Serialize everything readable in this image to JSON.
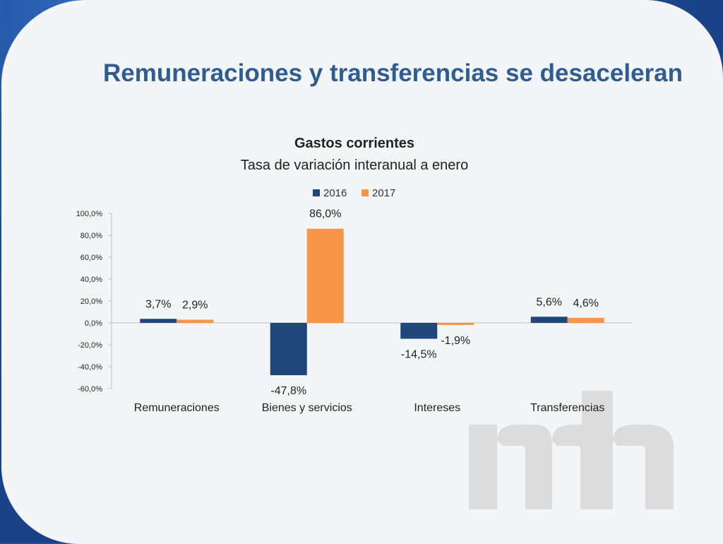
{
  "slide": {
    "title": "Remuneraciones y transferencias se desaceleran"
  },
  "colors": {
    "series_2016": "#1f477b",
    "series_2017": "#f79646",
    "title": "#2f5d8f",
    "watermark": "#dcdcdc"
  },
  "watermark_icon": "mh-logo-watermark",
  "chart_data": {
    "type": "bar",
    "title": "Gastos corrientes",
    "subtitle": "Tasa de variación interanual a enero",
    "categories": [
      "Remuneraciones",
      "Bienes y servicios",
      "Intereses",
      "Transferencias"
    ],
    "series": [
      {
        "name": "2016",
        "values": [
          3.7,
          -47.8,
          -14.5,
          5.6
        ],
        "labels": [
          "3,7%",
          "-47,8%",
          "-14,5%",
          "5,6%"
        ]
      },
      {
        "name": "2017",
        "values": [
          2.9,
          86.0,
          -1.9,
          4.6
        ],
        "labels": [
          "2,9%",
          "86,0%",
          "-1,9%",
          "4,6%"
        ]
      }
    ],
    "ylim": [
      -60,
      100
    ],
    "yticks": [
      100,
      80,
      60,
      40,
      20,
      0,
      -20,
      -40,
      -60
    ],
    "ytick_labels": [
      "100,0%",
      "80,0%",
      "60,0%",
      "40,0%",
      "20,0%",
      "0,0%",
      "-20,0%",
      "-40,0%",
      "-60,0%"
    ],
    "legend_position": "top",
    "grid": false
  }
}
